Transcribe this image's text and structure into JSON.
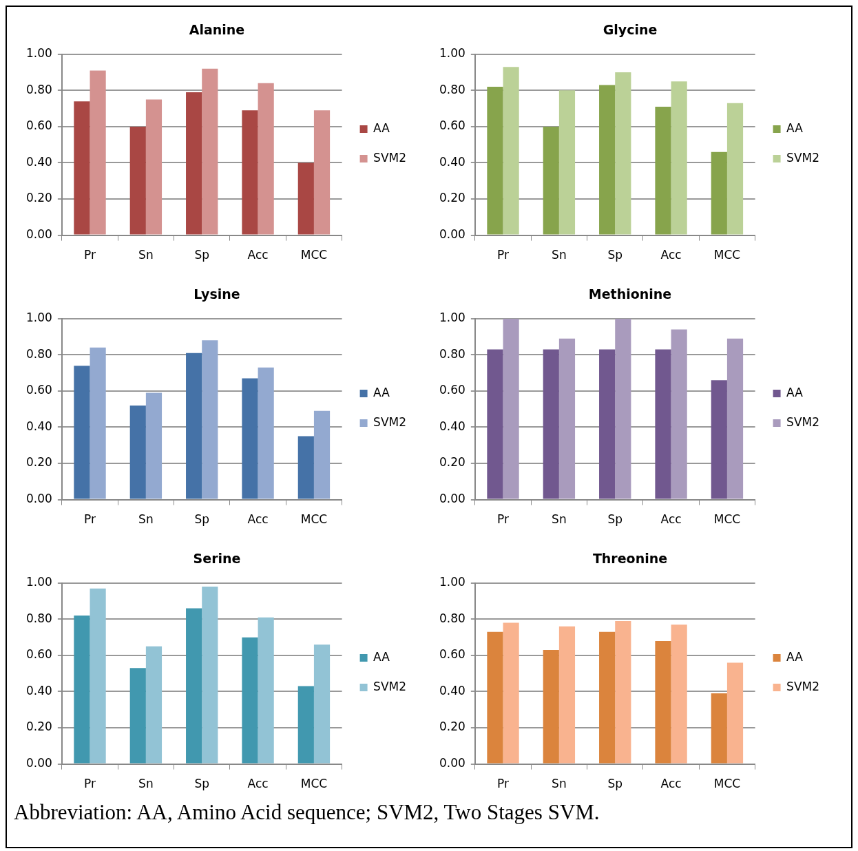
{
  "chart_data": [
    {
      "type": "bar",
      "title": "Alanine",
      "categories": [
        "Pr",
        "Sn",
        "Sp",
        "Acc",
        "MCC"
      ],
      "series": [
        {
          "name": "AA",
          "color": "#a94744",
          "values": [
            0.74,
            0.6,
            0.79,
            0.69,
            0.4
          ]
        },
        {
          "name": "SVM2",
          "color": "#d49290",
          "values": [
            0.91,
            0.75,
            0.92,
            0.84,
            0.69
          ]
        }
      ],
      "ylim": [
        0,
        1
      ],
      "yticks": [
        {
          "value": 0,
          "label": "0.00"
        },
        {
          "value": 0.2,
          "label": "0.20"
        },
        {
          "value": 0.4,
          "label": "0.40"
        },
        {
          "value": 0.6,
          "label": "0.60"
        },
        {
          "value": 0.8,
          "label": "0.80"
        },
        {
          "value": 1,
          "label": "1.00"
        }
      ],
      "grid": "y",
      "legend": "right"
    },
    {
      "type": "bar",
      "title": "Glycine",
      "categories": [
        "Pr",
        "Sn",
        "Sp",
        "Acc",
        "MCC"
      ],
      "series": [
        {
          "name": "AA",
          "color": "#87a44c",
          "values": [
            0.82,
            0.6,
            0.83,
            0.71,
            0.46
          ]
        },
        {
          "name": "SVM2",
          "color": "#bbd197",
          "values": [
            0.93,
            0.8,
            0.9,
            0.85,
            0.73
          ]
        }
      ],
      "ylim": [
        0,
        1
      ],
      "yticks": [
        {
          "value": 0,
          "label": "0.00"
        },
        {
          "value": 0.2,
          "label": "0.20"
        },
        {
          "value": 0.4,
          "label": "0.40"
        },
        {
          "value": 0.6,
          "label": "0.60"
        },
        {
          "value": 0.8,
          "label": "0.80"
        },
        {
          "value": 1,
          "label": "1.00"
        }
      ],
      "grid": "y",
      "legend": "right"
    },
    {
      "type": "bar",
      "title": "Lysine",
      "categories": [
        "Pr",
        "Sn",
        "Sp",
        "Acc",
        "MCC"
      ],
      "series": [
        {
          "name": "AA",
          "color": "#4572a7",
          "values": [
            0.74,
            0.52,
            0.81,
            0.67,
            0.35
          ]
        },
        {
          "name": "SVM2",
          "color": "#93a9d0",
          "values": [
            0.84,
            0.59,
            0.88,
            0.73,
            0.49
          ]
        }
      ],
      "ylim": [
        0,
        1
      ],
      "yticks": [
        {
          "value": 0,
          "label": "0.00"
        },
        {
          "value": 0.2,
          "label": "0.20"
        },
        {
          "value": 0.4,
          "label": "0.40"
        },
        {
          "value": 0.6,
          "label": "0.60"
        },
        {
          "value": 0.8,
          "label": "0.80"
        },
        {
          "value": 1,
          "label": "1.00"
        }
      ],
      "grid": "y",
      "legend": "right"
    },
    {
      "type": "bar",
      "title": "Methionine",
      "categories": [
        "Pr",
        "Sn",
        "Sp",
        "Acc",
        "MCC"
      ],
      "series": [
        {
          "name": "AA",
          "color": "#71588f",
          "values": [
            0.83,
            0.83,
            0.83,
            0.83,
            0.66
          ]
        },
        {
          "name": "SVM2",
          "color": "#a99bbd",
          "values": [
            1.0,
            0.89,
            1.0,
            0.94,
            0.89
          ]
        }
      ],
      "ylim": [
        0,
        1
      ],
      "yticks": [
        {
          "value": 0,
          "label": "0.00"
        },
        {
          "value": 0.2,
          "label": "0.20"
        },
        {
          "value": 0.4,
          "label": "0.40"
        },
        {
          "value": 0.6,
          "label": "0.60"
        },
        {
          "value": 0.8,
          "label": "0.80"
        },
        {
          "value": 1,
          "label": "1.00"
        }
      ],
      "grid": "y",
      "legend": "right"
    },
    {
      "type": "bar",
      "title": "Serine",
      "categories": [
        "Pr",
        "Sn",
        "Sp",
        "Acc",
        "MCC"
      ],
      "series": [
        {
          "name": "AA",
          "color": "#4198af",
          "values": [
            0.82,
            0.53,
            0.86,
            0.7,
            0.43
          ]
        },
        {
          "name": "SVM2",
          "color": "#92c3d5",
          "values": [
            0.97,
            0.65,
            0.98,
            0.81,
            0.66
          ]
        }
      ],
      "ylim": [
        0,
        1
      ],
      "yticks": [
        {
          "value": 0,
          "label": "0.00"
        },
        {
          "value": 0.2,
          "label": "0.20"
        },
        {
          "value": 0.4,
          "label": "0.40"
        },
        {
          "value": 0.6,
          "label": "0.60"
        },
        {
          "value": 0.8,
          "label": "0.80"
        },
        {
          "value": 1,
          "label": "1.00"
        }
      ],
      "grid": "y",
      "legend": "right"
    },
    {
      "type": "bar",
      "title": "Threonine",
      "categories": [
        "Pr",
        "Sn",
        "Sp",
        "Acc",
        "MCC"
      ],
      "series": [
        {
          "name": "AA",
          "color": "#db843d",
          "values": [
            0.73,
            0.63,
            0.73,
            0.68,
            0.39
          ]
        },
        {
          "name": "SVM2",
          "color": "#f9b38f",
          "values": [
            0.78,
            0.76,
            0.79,
            0.77,
            0.56
          ]
        }
      ],
      "ylim": [
        0,
        1
      ],
      "yticks": [
        {
          "value": 0,
          "label": "0.00"
        },
        {
          "value": 0.2,
          "label": "0.20"
        },
        {
          "value": 0.4,
          "label": "0.40"
        },
        {
          "value": 0.6,
          "label": "0.60"
        },
        {
          "value": 0.8,
          "label": "0.80"
        },
        {
          "value": 1,
          "label": "1.00"
        }
      ],
      "grid": "y",
      "legend": "right",
      "annotations": [
        "Abbreviation: AA, Amino Acid sequence; SVM2, Two Stages SVM."
      ]
    }
  ]
}
